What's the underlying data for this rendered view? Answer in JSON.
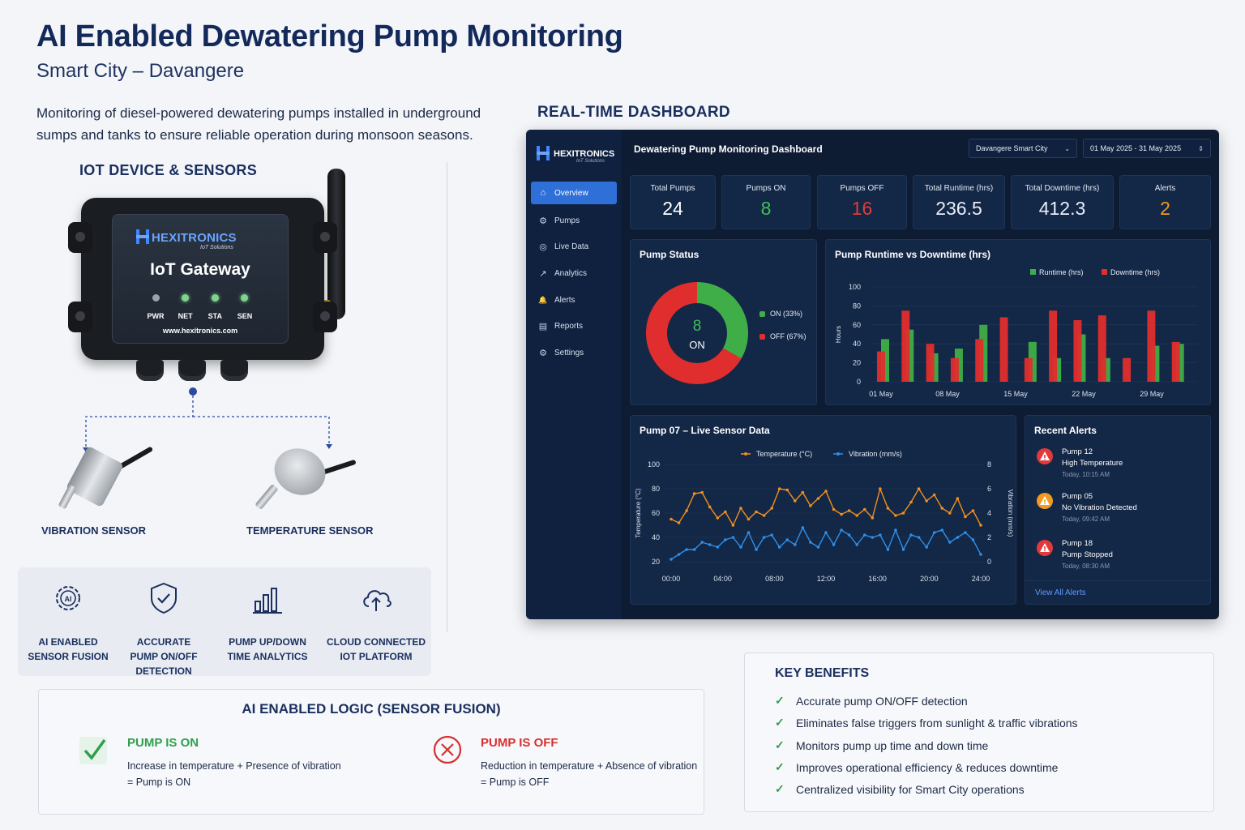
{
  "header": {
    "title": "AI Enabled Dewatering Pump Monitoring",
    "subtitle": "Smart City – Davangere",
    "intro": "Monitoring of diesel-powered dewatering pumps installed in underground sumps and tanks to ensure reliable operation during monsoon seasons."
  },
  "iot": {
    "heading": "IOT DEVICE & SENSORS",
    "brand": "HEXITRONICS",
    "brand_sub": "IoT Solutions",
    "device_name": "IoT Gateway",
    "leds": [
      "PWR",
      "NET",
      "STA",
      "SEN"
    ],
    "website": "www.hexitronics.com",
    "sensors": [
      "VIBRATION SENSOR",
      "TEMPERATURE SENSOR"
    ]
  },
  "features": [
    {
      "icon": "ai-chip-gear-icon",
      "line1": "AI ENABLED",
      "line2": "SENSOR FUSION",
      "line3": ""
    },
    {
      "icon": "shield-check-icon",
      "line1": "ACCURATE",
      "line2": "PUMP ON/OFF",
      "line3": "DETECTION"
    },
    {
      "icon": "bar-chart-icon",
      "line1": "PUMP UP/DOWN",
      "line2": "TIME ANALYTICS",
      "line3": ""
    },
    {
      "icon": "cloud-upload-icon",
      "line1": "CLOUD CONNECTED",
      "line2": "IOT PLATFORM",
      "line3": ""
    }
  ],
  "logic": {
    "heading": "AI ENABLED LOGIC (SENSOR FUSION)",
    "on": {
      "state": "PUMP IS ON",
      "line1": "Increase in temperature + Presence of vibration",
      "line2": "= Pump is ON",
      "color": "#2f9e4b"
    },
    "off": {
      "state": "PUMP IS OFF",
      "line1": "Reduction in temperature + Absence of vibration",
      "line2": "= Pump is OFF",
      "color": "#d92f2f"
    }
  },
  "benefits": {
    "heading": "KEY BENEFITS",
    "items": [
      "Accurate pump ON/OFF detection",
      "Eliminates false triggers from sunlight & traffic vibrations",
      "Monitors pump up time and down time",
      "Improves operational efficiency & reduces downtime",
      "Centralized visibility for Smart City operations"
    ]
  },
  "dashboard": {
    "section_heading": "REAL-TIME DASHBOARD",
    "brand": "HEXITRONICS",
    "brand_sub": "IoT Solutions",
    "title": "Dewatering Pump Monitoring Dashboard",
    "location_select": "Davangere Smart City",
    "date_range": "01 May 2025 - 31 May 2025",
    "nav": [
      {
        "label": "Overview",
        "icon": "home-icon",
        "glyph": "⌂"
      },
      {
        "label": "Pumps",
        "icon": "pump-icon",
        "glyph": "⚙"
      },
      {
        "label": "Live Data",
        "icon": "live-icon",
        "glyph": "◎"
      },
      {
        "label": "Analytics",
        "icon": "analytics-icon",
        "glyph": "↗"
      },
      {
        "label": "Alerts",
        "icon": "bell-icon",
        "glyph": "🔔"
      },
      {
        "label": "Reports",
        "icon": "report-icon",
        "glyph": "▤"
      },
      {
        "label": "Settings",
        "icon": "gear-icon",
        "glyph": "⚙"
      }
    ],
    "kpis": [
      {
        "label": "Total Pumps",
        "value": "24",
        "color": "#ffffff"
      },
      {
        "label": "Pumps ON",
        "value": "8",
        "color": "#3fbf5a"
      },
      {
        "label": "Pumps OFF",
        "value": "16",
        "color": "#e23a3a"
      },
      {
        "label": "Total Runtime (hrs)",
        "value": "236.5",
        "color": "#e8eef8"
      },
      {
        "label": "Total Downtime (hrs)",
        "value": "412.3",
        "color": "#e8eef8"
      },
      {
        "label": "Alerts",
        "value": "2",
        "color": "#f29a1f"
      }
    ],
    "pump_status": {
      "title": "Pump Status",
      "center_value": "8",
      "center_label": "ON",
      "legend": [
        "ON (33%)",
        "OFF (67%)"
      ]
    },
    "runtime_chart_title": "Pump Runtime vs Downtime (hrs)",
    "live_chart_title": "Pump 07 – Live Sensor Data",
    "alerts": {
      "title": "Recent Alerts",
      "items": [
        {
          "pump": "Pump 12",
          "msg": "High Temperature",
          "time": "Today, 10:15 AM",
          "color": "#e23a3a"
        },
        {
          "pump": "Pump 05",
          "msg": "No Vibration Detected",
          "time": "Today, 09:42 AM",
          "color": "#f29a1f"
        },
        {
          "pump": "Pump 18",
          "msg": "Pump Stopped",
          "time": "Today, 08:30 AM",
          "color": "#e23a3a"
        }
      ],
      "view_all": "View All Alerts"
    }
  },
  "chart_data": [
    {
      "type": "pie",
      "title": "Pump Status",
      "labels": [
        "ON (33%)",
        "OFF (67%)"
      ],
      "values": [
        8,
        16
      ],
      "colors": [
        "#3fae49",
        "#e02d2d"
      ]
    },
    {
      "type": "bar",
      "title": "Pump Runtime vs Downtime (hrs)",
      "ylabel": "Hours",
      "ylim": [
        0,
        100
      ],
      "yticks": [
        0,
        20,
        40,
        60,
        80,
        100
      ],
      "xtick_labels": [
        "01 May",
        "08 May",
        "15 May",
        "22 May",
        "29 May"
      ],
      "series": [
        {
          "name": "Runtime (hrs)",
          "color": "#3fae49",
          "values": [
            45,
            55,
            30,
            35,
            60,
            0,
            42,
            25,
            50,
            25,
            0,
            38,
            40
          ]
        },
        {
          "name": "Downtime (hrs)",
          "color": "#e02d2d",
          "values": [
            32,
            75,
            40,
            25,
            45,
            68,
            25,
            75,
            65,
            70,
            25,
            75,
            42
          ]
        }
      ]
    },
    {
      "type": "line",
      "title": "Pump 07 – Live Sensor Data",
      "x_ticks": [
        "00:00",
        "04:00",
        "08:00",
        "12:00",
        "16:00",
        "20:00",
        "24:00"
      ],
      "ylabel_left": "Temperature (°C)",
      "ylabel_right": "Vibration (mm/s)",
      "ylim_left": [
        20,
        100
      ],
      "yticks_left": [
        20,
        40,
        60,
        80,
        100
      ],
      "ylim_right": [
        0,
        8
      ],
      "yticks_right": [
        0,
        2,
        4,
        6,
        8
      ],
      "series": [
        {
          "name": "Temperature (°C)",
          "color": "#f0901e",
          "axis": "left",
          "values": [
            55,
            52,
            62,
            76,
            77,
            65,
            56,
            61,
            50,
            64,
            55,
            61,
            58,
            64,
            80,
            79,
            70,
            77,
            66,
            72,
            78,
            63,
            59,
            62,
            58,
            63,
            56,
            80,
            64,
            58,
            60,
            69,
            80,
            70,
            75,
            64,
            60,
            72,
            57,
            62,
            50
          ]
        },
        {
          "name": "Vibration (mm/s)",
          "color": "#2f8fe8",
          "axis": "right",
          "values": [
            0.2,
            0.6,
            1.0,
            1.0,
            1.6,
            1.4,
            1.2,
            1.8,
            2.0,
            1.2,
            2.4,
            1.0,
            2.0,
            2.2,
            1.2,
            1.8,
            1.4,
            2.8,
            1.6,
            1.2,
            2.4,
            1.4,
            2.6,
            2.2,
            1.4,
            2.2,
            2.0,
            2.2,
            1.0,
            2.6,
            1.0,
            2.2,
            2.0,
            1.2,
            2.4,
            2.6,
            1.6,
            2.0,
            2.4,
            1.8,
            0.6
          ]
        }
      ]
    }
  ]
}
